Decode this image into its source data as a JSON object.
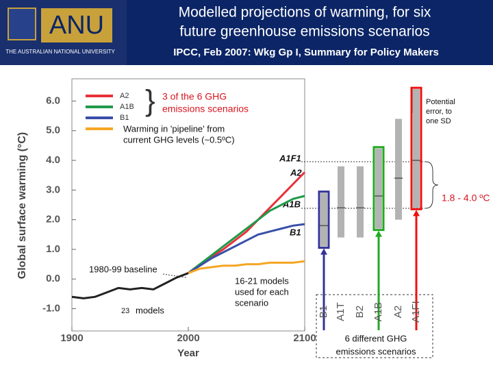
{
  "header": {
    "logo": "ANU",
    "university": "THE AUSTRALIAN NATIONAL UNIVERSITY",
    "title": [
      "Modelled projections of warming, for six",
      "future greenhouse emissions scenarios"
    ],
    "subtitle": "IPCC, Feb 2007: Wkg Gp I, Summary for Policy Makers"
  },
  "chart_data": [
    {
      "type": "line",
      "x_label": "Year",
      "y_label": "Global surface warming (°C)",
      "x": [
        1900,
        1910,
        1920,
        1930,
        1940,
        1950,
        1960,
        1970,
        1980,
        1990,
        2000,
        2010,
        2020,
        2030,
        2040,
        2050,
        2060,
        2070,
        2080,
        2090,
        2100
      ],
      "series": [
        {
          "name": "A2",
          "color": "#e8313a",
          "values": [
            null,
            null,
            null,
            null,
            null,
            null,
            null,
            null,
            null,
            null,
            0.2,
            0.5,
            0.75,
            1.0,
            1.3,
            1.6,
            2.0,
            2.4,
            2.8,
            3.2,
            3.6
          ]
        },
        {
          "name": "A1B",
          "color": "#1e9a4a",
          "values": [
            null,
            null,
            null,
            null,
            null,
            null,
            null,
            null,
            null,
            null,
            0.2,
            0.5,
            0.8,
            1.1,
            1.4,
            1.7,
            2.0,
            2.3,
            2.5,
            2.7,
            2.8
          ]
        },
        {
          "name": "B1",
          "color": "#3a4fa8",
          "values": [
            null,
            null,
            null,
            null,
            null,
            null,
            null,
            null,
            null,
            null,
            0.2,
            0.45,
            0.7,
            0.9,
            1.1,
            1.3,
            1.5,
            1.6,
            1.7,
            1.8,
            1.85
          ]
        },
        {
          "color": "#f5a623",
          "values": [
            null,
            null,
            null,
            null,
            null,
            null,
            null,
            null,
            null,
            null,
            0.2,
            0.35,
            0.4,
            0.45,
            0.45,
            0.5,
            0.5,
            0.55,
            0.55,
            0.55,
            0.6
          ]
        },
        {
          "color": "#222222",
          "values": [
            -0.6,
            -0.65,
            -0.6,
            -0.45,
            -0.3,
            -0.35,
            -0.3,
            -0.35,
            -0.15,
            0.05,
            0.2,
            null,
            null,
            null,
            null,
            null,
            null,
            null,
            null,
            null,
            null
          ]
        }
      ],
      "xlim": [
        1900,
        2100
      ],
      "xticks": [
        1900,
        2000,
        2100
      ],
      "ylim": [
        -1.75,
        6.75
      ],
      "yticks": [
        {
          "value": -1,
          "label": "-1.0"
        },
        {
          "value": 0,
          "label": "0.0"
        },
        {
          "value": 1,
          "label": "1.0"
        },
        {
          "value": 2,
          "label": "2.0"
        },
        {
          "value": 3,
          "label": "3.0"
        },
        {
          "value": 4,
          "label": "4.0"
        },
        {
          "value": 5,
          "label": "5.0"
        },
        {
          "value": 6,
          "label": "6.0"
        }
      ],
      "annotations": {
        "ghg": [
          "3 of the 6 GHG",
          "emissions scenarios"
        ],
        "pipeline": [
          "Warming in 'pipeline' from",
          "current GHG levels (~0.5ºC)"
        ],
        "baseline": "1980-99 baseline",
        "models23": [
          "23",
          "models"
        ],
        "models16": [
          "16-21 models",
          "used for each",
          "scenario"
        ],
        "a1f1": "A1F1",
        "a2": "A2",
        "a1b": "A1B",
        "b1": "B1"
      }
    },
    {
      "type": "range",
      "categories": [
        "B1",
        "A1T",
        "B2",
        "A1B",
        "A2",
        "A1FI"
      ],
      "values": [
        1.8,
        2.4,
        2.4,
        2.8,
        3.4,
        4.0
      ],
      "low": [
        1.1,
        1.4,
        1.4,
        1.7,
        2.0,
        2.4
      ],
      "high": [
        2.9,
        3.8,
        3.8,
        4.4,
        5.4,
        6.4
      ],
      "color": "#b3b3b3",
      "outline_colors": [
        "#333399",
        null,
        null,
        "#22aa22",
        null,
        "#ee1111"
      ],
      "annotations": {
        "error": [
          "Potential",
          "error, to",
          "one SD"
        ],
        "range": "1.8 - 4.0 ºC",
        "scenarios": [
          "6 different GHG",
          "emissions scenarios"
        ]
      }
    }
  ]
}
